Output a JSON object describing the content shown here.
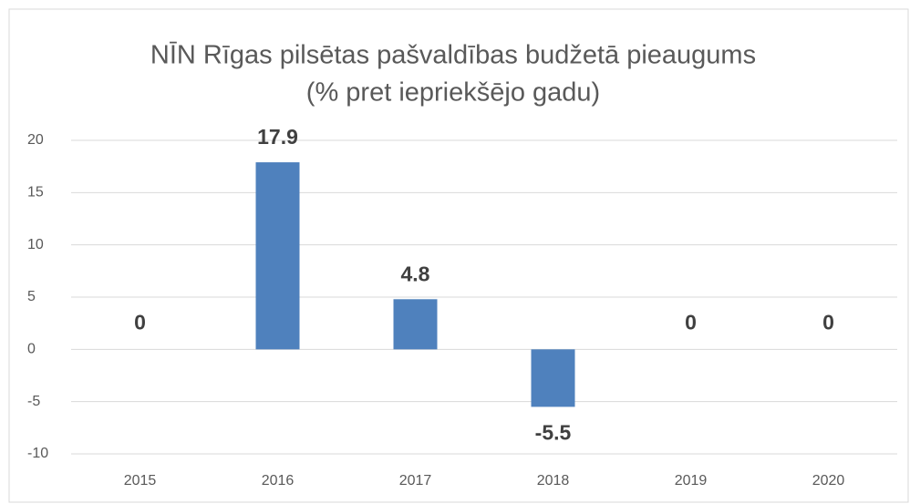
{
  "chart_data": {
    "type": "bar",
    "title": [
      "NĪN Rīgas pilsētas pašvaldības budžetā pieaugums",
      "(% pret iepriekšējo  gadu)"
    ],
    "categories": [
      "2015",
      "2016",
      "2017",
      "2018",
      "2019",
      "2020"
    ],
    "values": [
      0,
      17.9,
      4.8,
      -5.5,
      0,
      0
    ],
    "color": "#4f81bd",
    "ylim": [
      -10,
      20
    ],
    "yticks": [
      20,
      15,
      10,
      5,
      0,
      -5,
      -10
    ],
    "grid": true
  }
}
